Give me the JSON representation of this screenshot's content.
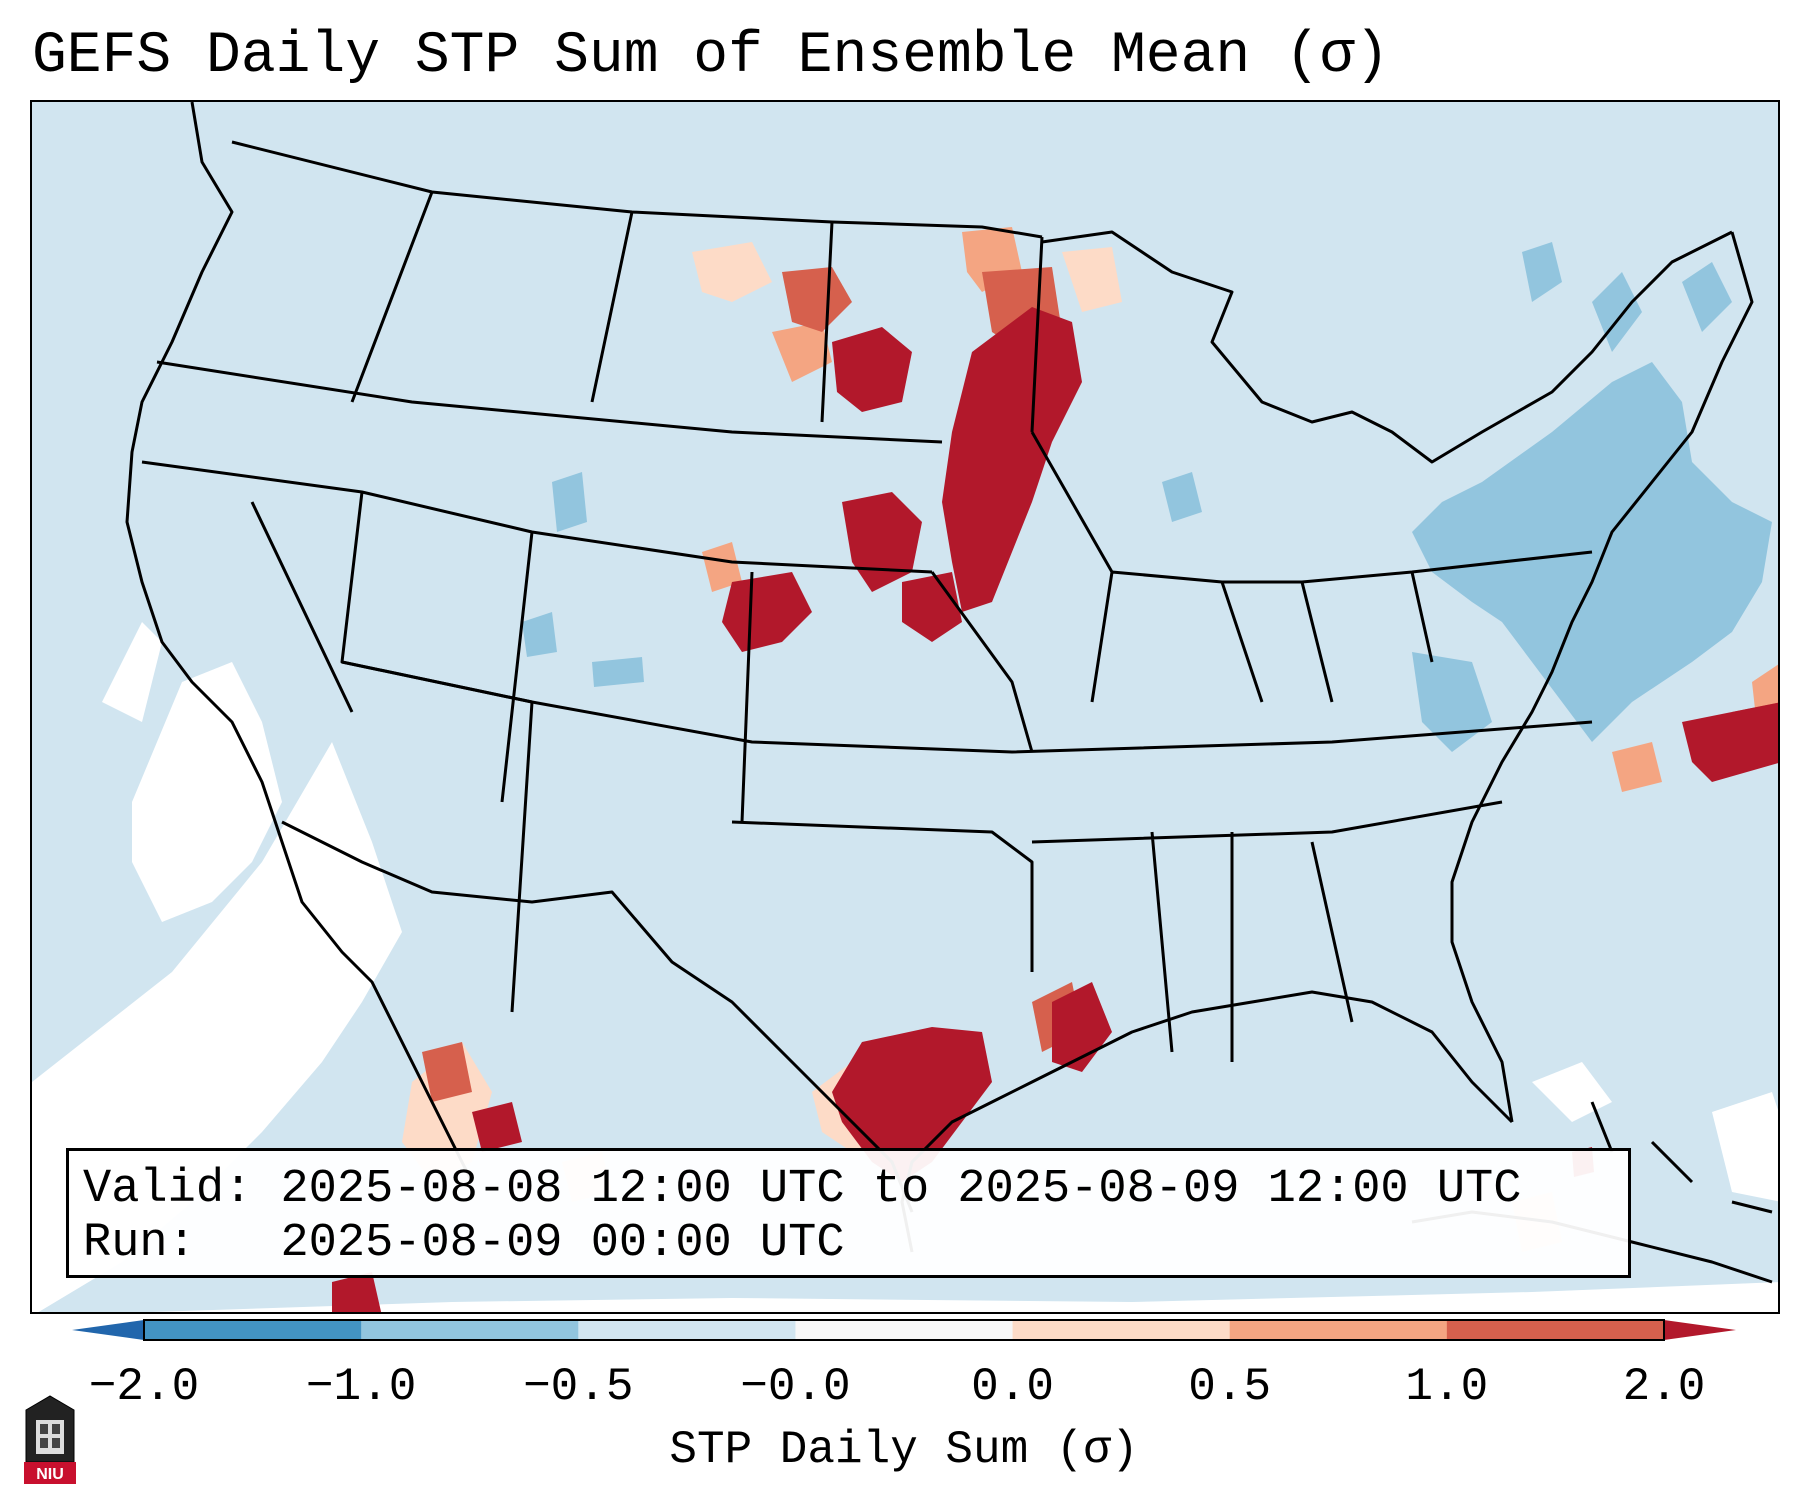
{
  "title": "GEFS Daily STP Sum of Ensemble Mean (σ)",
  "info": {
    "valid_label": "Valid:",
    "valid_text": "2025-08-08 12:00 UTC to 2025-08-09 12:00 UTC",
    "run_label": "Run:",
    "run_text": "2025-08-09 00:00 UTC"
  },
  "colorbar": {
    "label": "STP Daily Sum (σ)",
    "ticks": [
      "−2.0",
      "−1.0",
      "−0.5",
      "−0.0",
      "0.0",
      "0.5",
      "1.0",
      "2.0"
    ],
    "colors": [
      "#2166ac",
      "#4393c3",
      "#92c5de",
      "#d1e5f0",
      "#f7f7f7",
      "#fddbc7",
      "#f4a582",
      "#d6604d",
      "#b2182b"
    ],
    "bin_colors": [
      "#4393c3",
      "#92c5de",
      "#d1e5f0",
      "#f7f7f7",
      "#fddbc7",
      "#f4a582",
      "#d6604d"
    ],
    "under_color": "#2166ac",
    "over_color": "#b2182b"
  },
  "map": {
    "background_color": "#d1e5f0",
    "region": "Contiguous United States",
    "anomaly_areas": [
      {
        "name": "Northern Plains / Red River Valley",
        "category": "above 2.0"
      },
      {
        "name": "North Dakota",
        "category": "above 2.0"
      },
      {
        "name": "Nebraska / South Dakota",
        "category": "above 2.0"
      },
      {
        "name": "Texas Gulf Coast",
        "category": "above 2.0"
      },
      {
        "name": "Louisiana",
        "category": "1.0 to 2.0"
      },
      {
        "name": "Atlantic offshore",
        "category": "above 2.0"
      },
      {
        "name": "Northeast US / Atlantic",
        "category": "-1.0 to -0.5"
      },
      {
        "name": "Pacific / Baja",
        "category": "-0.0 to 0.0"
      }
    ]
  },
  "logo": {
    "text": "NIU"
  }
}
